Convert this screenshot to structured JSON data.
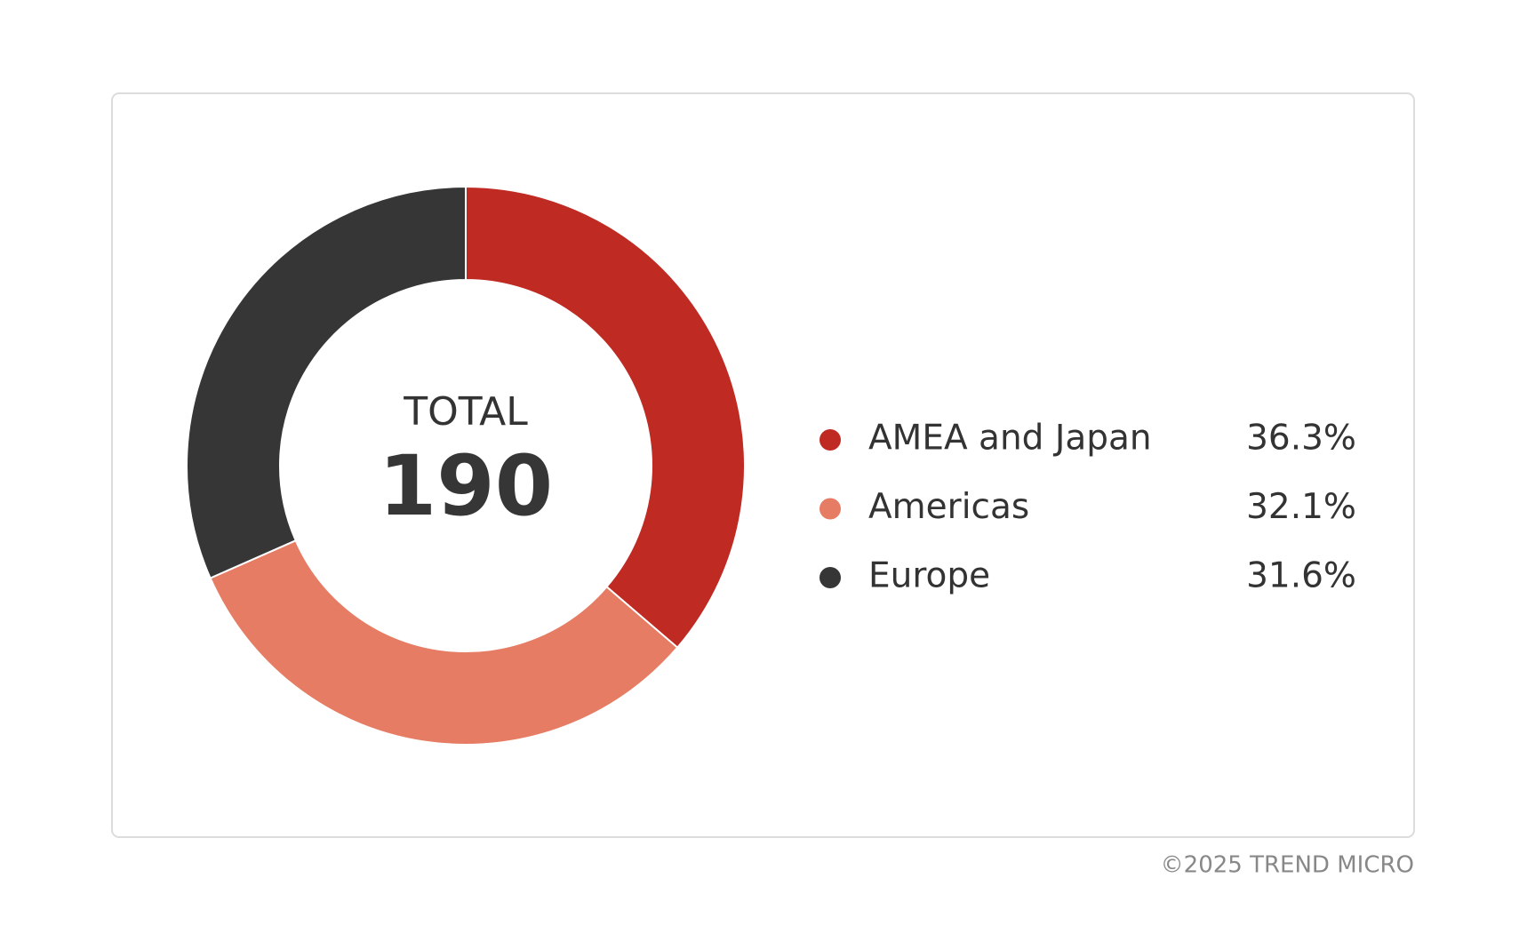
{
  "chart_data": {
    "type": "pie",
    "center_label": "TOTAL",
    "total": 190,
    "categories": [
      "AMEA and Japan",
      "Americas",
      "Europe"
    ],
    "values": [
      36.3,
      32.1,
      31.6
    ],
    "value_labels": [
      "36.3%",
      "32.1%",
      "31.6%"
    ],
    "colors": [
      "#bf2a23",
      "#e67c63",
      "#363636"
    ],
    "donut": true
  },
  "footer": "©2025 TREND MICRO"
}
